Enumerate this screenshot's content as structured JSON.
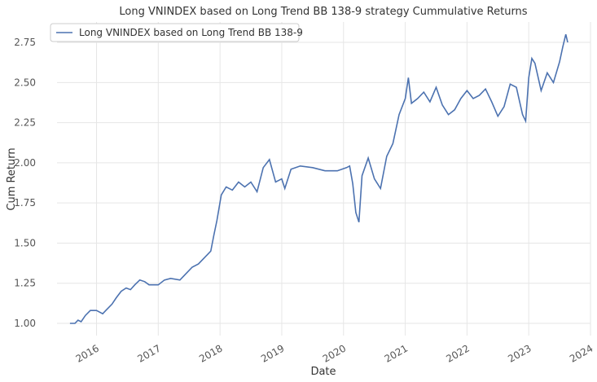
{
  "chart_data": {
    "type": "line",
    "title": "Long VNINDEX based on Long Trend BB 138-9 strategy Cummulative Returns",
    "x_label": "Date",
    "y_label": "Cum Return",
    "x": [
      2015.57,
      2015.65,
      2015.7,
      2015.75,
      2015.82,
      2015.9,
      2016.0,
      2016.05,
      2016.1,
      2016.15,
      2016.25,
      2016.32,
      2016.4,
      2016.48,
      2016.55,
      2016.62,
      2016.7,
      2016.78,
      2016.85,
      2017.0,
      2017.1,
      2017.2,
      2017.35,
      2017.45,
      2017.55,
      2017.65,
      2017.75,
      2017.85,
      2017.9,
      2017.95,
      2018.02,
      2018.1,
      2018.2,
      2018.3,
      2018.4,
      2018.5,
      2018.6,
      2018.7,
      2018.8,
      2018.9,
      2019.0,
      2019.05,
      2019.15,
      2019.3,
      2019.5,
      2019.7,
      2019.9,
      2020.05,
      2020.1,
      2020.15,
      2020.2,
      2020.25,
      2020.3,
      2020.4,
      2020.5,
      2020.6,
      2020.7,
      2020.8,
      2020.9,
      2021.0,
      2021.05,
      2021.1,
      2021.2,
      2021.3,
      2021.4,
      2021.5,
      2021.6,
      2021.7,
      2021.8,
      2021.9,
      2022.0,
      2022.1,
      2022.2,
      2022.3,
      2022.4,
      2022.5,
      2022.6,
      2022.7,
      2022.8,
      2022.9,
      2022.95,
      2023.0,
      2023.05,
      2023.1,
      2023.2,
      2023.3,
      2023.4,
      2023.5,
      2023.55,
      2023.6,
      2023.63
    ],
    "series": [
      {
        "name": "Long VNINDEX based on Long Trend BB 138-9",
        "color": "#4c72b0",
        "values": [
          1.0,
          1.0,
          1.02,
          1.01,
          1.05,
          1.08,
          1.08,
          1.07,
          1.06,
          1.08,
          1.12,
          1.16,
          1.2,
          1.22,
          1.21,
          1.24,
          1.27,
          1.26,
          1.24,
          1.24,
          1.27,
          1.28,
          1.27,
          1.31,
          1.35,
          1.37,
          1.41,
          1.45,
          1.55,
          1.64,
          1.8,
          1.85,
          1.83,
          1.88,
          1.85,
          1.88,
          1.82,
          1.97,
          2.02,
          1.88,
          1.9,
          1.84,
          1.96,
          1.98,
          1.97,
          1.95,
          1.95,
          1.97,
          1.98,
          1.87,
          1.69,
          1.63,
          1.92,
          2.03,
          1.9,
          1.84,
          2.04,
          2.12,
          2.3,
          2.4,
          2.53,
          2.37,
          2.4,
          2.44,
          2.38,
          2.47,
          2.36,
          2.3,
          2.33,
          2.4,
          2.45,
          2.4,
          2.42,
          2.46,
          2.38,
          2.29,
          2.35,
          2.49,
          2.47,
          2.3,
          2.26,
          2.53,
          2.65,
          2.62,
          2.45,
          2.56,
          2.5,
          2.63,
          2.72,
          2.8,
          2.75
        ]
      }
    ],
    "xlim": [
      2015.36,
      2024.0
    ],
    "xticks": [
      2016,
      2017,
      2018,
      2019,
      2020,
      2021,
      2022,
      2023,
      2024
    ],
    "ylim": [
      0.924,
      2.877
    ],
    "yticks": [
      {
        "value": 1.0,
        "label": "1.00"
      },
      {
        "value": 1.25,
        "label": "1.25"
      },
      {
        "value": 1.5,
        "label": "1.50"
      },
      {
        "value": 1.75,
        "label": "1.75"
      },
      {
        "value": 2.0,
        "label": "2.00"
      },
      {
        "value": 2.25,
        "label": "2.25"
      },
      {
        "value": 2.5,
        "label": "2.50"
      },
      {
        "value": 2.75,
        "label": "2.75"
      }
    ],
    "grid": true,
    "legend": "upper left"
  }
}
